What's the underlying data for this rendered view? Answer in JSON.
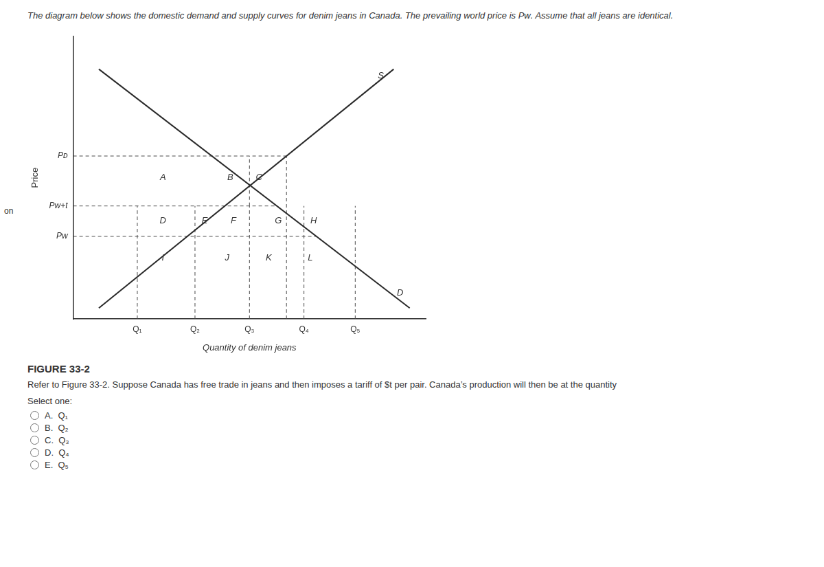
{
  "side_text": "on",
  "header_text": "The diagram below shows the domestic demand and supply curves for denim jeans in Canada. The prevailing world price is Pᴡ. Assume that all jeans are identical.",
  "figure_label": "FIGURE 33-2",
  "question_text": "Refer to Figure 33-2. Suppose Canada has free trade in jeans and then imposes a tariff of $t per pair. Canada’s production will then be at the quantity",
  "select_label": "Select one:",
  "options": [
    "A.  Q₁",
    "B.  Q₂",
    "C.  Q₃",
    "D.  Q₄",
    "E.  Q₅"
  ],
  "chart_data": {
    "type": "line",
    "xlabel": "Quantity of denim jeans",
    "ylabel": "Price",
    "xlim": [
      0,
      11
    ],
    "ylim": [
      0,
      13
    ],
    "xticks": [
      {
        "value": 2.0,
        "label": "Q₁"
      },
      {
        "value": 3.8,
        "label": "Q₂"
      },
      {
        "value": 5.5,
        "label": "Q₃"
      },
      {
        "value": 7.2,
        "label": "Q₄"
      },
      {
        "value": 8.8,
        "label": "Q₅"
      }
    ],
    "yticks": [
      {
        "value": 3.8,
        "label": "Pᴡ"
      },
      {
        "value": 5.2,
        "label": "Pᴡ+t"
      },
      {
        "value": 7.5,
        "label": "Pᴅ"
      }
    ],
    "grid": false,
    "series": [
      {
        "x": [
          0.8,
          10.0
        ],
        "values": [
          0.5,
          11.5
        ],
        "color": "#2a2a2a",
        "line_style": "solid"
      },
      {
        "x": [
          0.8,
          10.5
        ],
        "values": [
          11.5,
          0.5
        ],
        "color": "#2a2a2a",
        "line_style": "solid"
      },
      {
        "x": [
          0,
          6.654545454545455
        ],
        "values": [
          7.5,
          7.5
        ],
        "color": "#4a4a4a",
        "line_style": "dashed"
      },
      {
        "x": [
          6.654545454545455,
          6.654545454545455
        ],
        "values": [
          0,
          7.5
        ],
        "color": "#4a4a4a",
        "line_style": "dashed"
      },
      {
        "x": [
          0,
          6.355454545454545
        ],
        "values": [
          5.2,
          5.2
        ],
        "color": "#4a4a4a",
        "line_style": "dashed"
      },
      {
        "x": [
          0,
          7.59
        ],
        "values": [
          3.8,
          3.8
        ],
        "color": "#4a4a4a",
        "line_style": "dashed"
      },
      {
        "x": [
          2.0,
          2.0
        ],
        "values": [
          0,
          5.2
        ],
        "color": "#4a4a4a",
        "line_style": "dashed"
      },
      {
        "x": [
          3.8,
          3.8
        ],
        "values": [
          0,
          5.2
        ],
        "color": "#4a4a4a",
        "line_style": "dashed"
      },
      {
        "x": [
          5.5,
          5.5
        ],
        "values": [
          0,
          5.2
        ],
        "color": "#4a4a4a",
        "line_style": "dashed"
      },
      {
        "x": [
          7.2,
          7.2
        ],
        "values": [
          0,
          5.2
        ],
        "color": "#4a4a4a",
        "line_style": "dashed"
      },
      {
        "x": [
          8.8,
          8.8
        ],
        "values": [
          0,
          5.2
        ],
        "color": "#4a4a4a",
        "line_style": "dashed"
      },
      {
        "x": [
          5.5,
          5.5
        ],
        "values": [
          5.2,
          7.5
        ],
        "color": "#4a4a4a",
        "line_style": "dashed"
      }
    ],
    "annotations": [
      {
        "text": "S",
        "x": 9.6,
        "y": 11.2
      },
      {
        "text": "D",
        "x": 10.2,
        "y": 1.2
      },
      {
        "text": "A",
        "x": 2.8,
        "y": 6.5
      },
      {
        "text": "B",
        "x": 4.9,
        "y": 6.5
      },
      {
        "text": "C",
        "x": 5.8,
        "y": 6.5
      },
      {
        "text": "D",
        "x": 2.8,
        "y": 4.5
      },
      {
        "text": "E",
        "x": 4.1,
        "y": 4.5
      },
      {
        "text": "F",
        "x": 5.0,
        "y": 4.5
      },
      {
        "text": "G",
        "x": 6.4,
        "y": 4.5
      },
      {
        "text": "H",
        "x": 7.5,
        "y": 4.5
      },
      {
        "text": "I",
        "x": 2.8,
        "y": 2.8
      },
      {
        "text": "J",
        "x": 4.8,
        "y": 2.8
      },
      {
        "text": "K",
        "x": 6.1,
        "y": 2.8
      },
      {
        "text": "L",
        "x": 7.4,
        "y": 2.8
      }
    ]
  }
}
